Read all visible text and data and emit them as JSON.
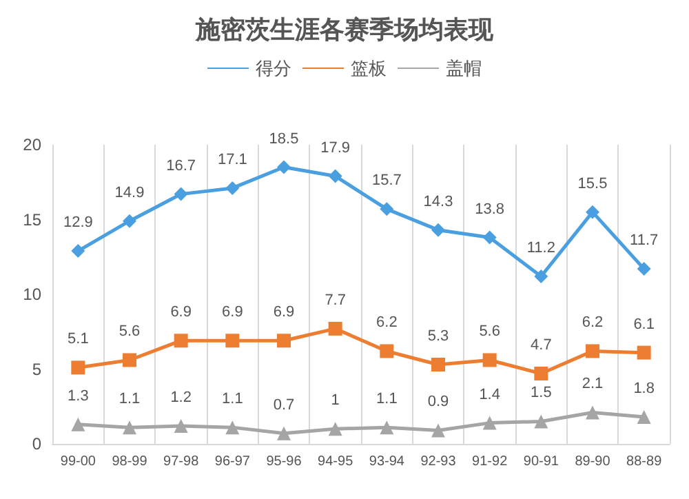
{
  "chart_data": {
    "type": "line",
    "title": "施密茨生涯各赛季场均表现",
    "categories": [
      "99-00",
      "98-99",
      "97-98",
      "96-97",
      "95-96",
      "94-95",
      "93-94",
      "92-93",
      "91-92",
      "90-91",
      "89-90",
      "88-89"
    ],
    "series": [
      {
        "name": "得分",
        "color": "#4a9fe0",
        "marker": "diamond",
        "values": [
          12.9,
          14.9,
          16.7,
          17.1,
          18.5,
          17.9,
          15.7,
          14.3,
          13.8,
          11.2,
          15.5,
          11.7
        ]
      },
      {
        "name": "篮板",
        "color": "#ed7d31",
        "marker": "square",
        "values": [
          5.1,
          5.6,
          6.9,
          6.9,
          6.9,
          7.7,
          6.2,
          5.3,
          5.6,
          4.7,
          6.2,
          6.1
        ]
      },
      {
        "name": "盖帽",
        "color": "#a5a5a5",
        "marker": "triangle",
        "values": [
          1.3,
          1.1,
          1.2,
          1.1,
          0.7,
          1,
          1.1,
          0.9,
          1.4,
          1.5,
          2.1,
          1.8
        ]
      }
    ],
    "ylim": [
      0,
      20
    ],
    "yticks": [
      0,
      5,
      10,
      15,
      20
    ],
    "grid": "x",
    "legend": "top",
    "data_labels": true
  }
}
